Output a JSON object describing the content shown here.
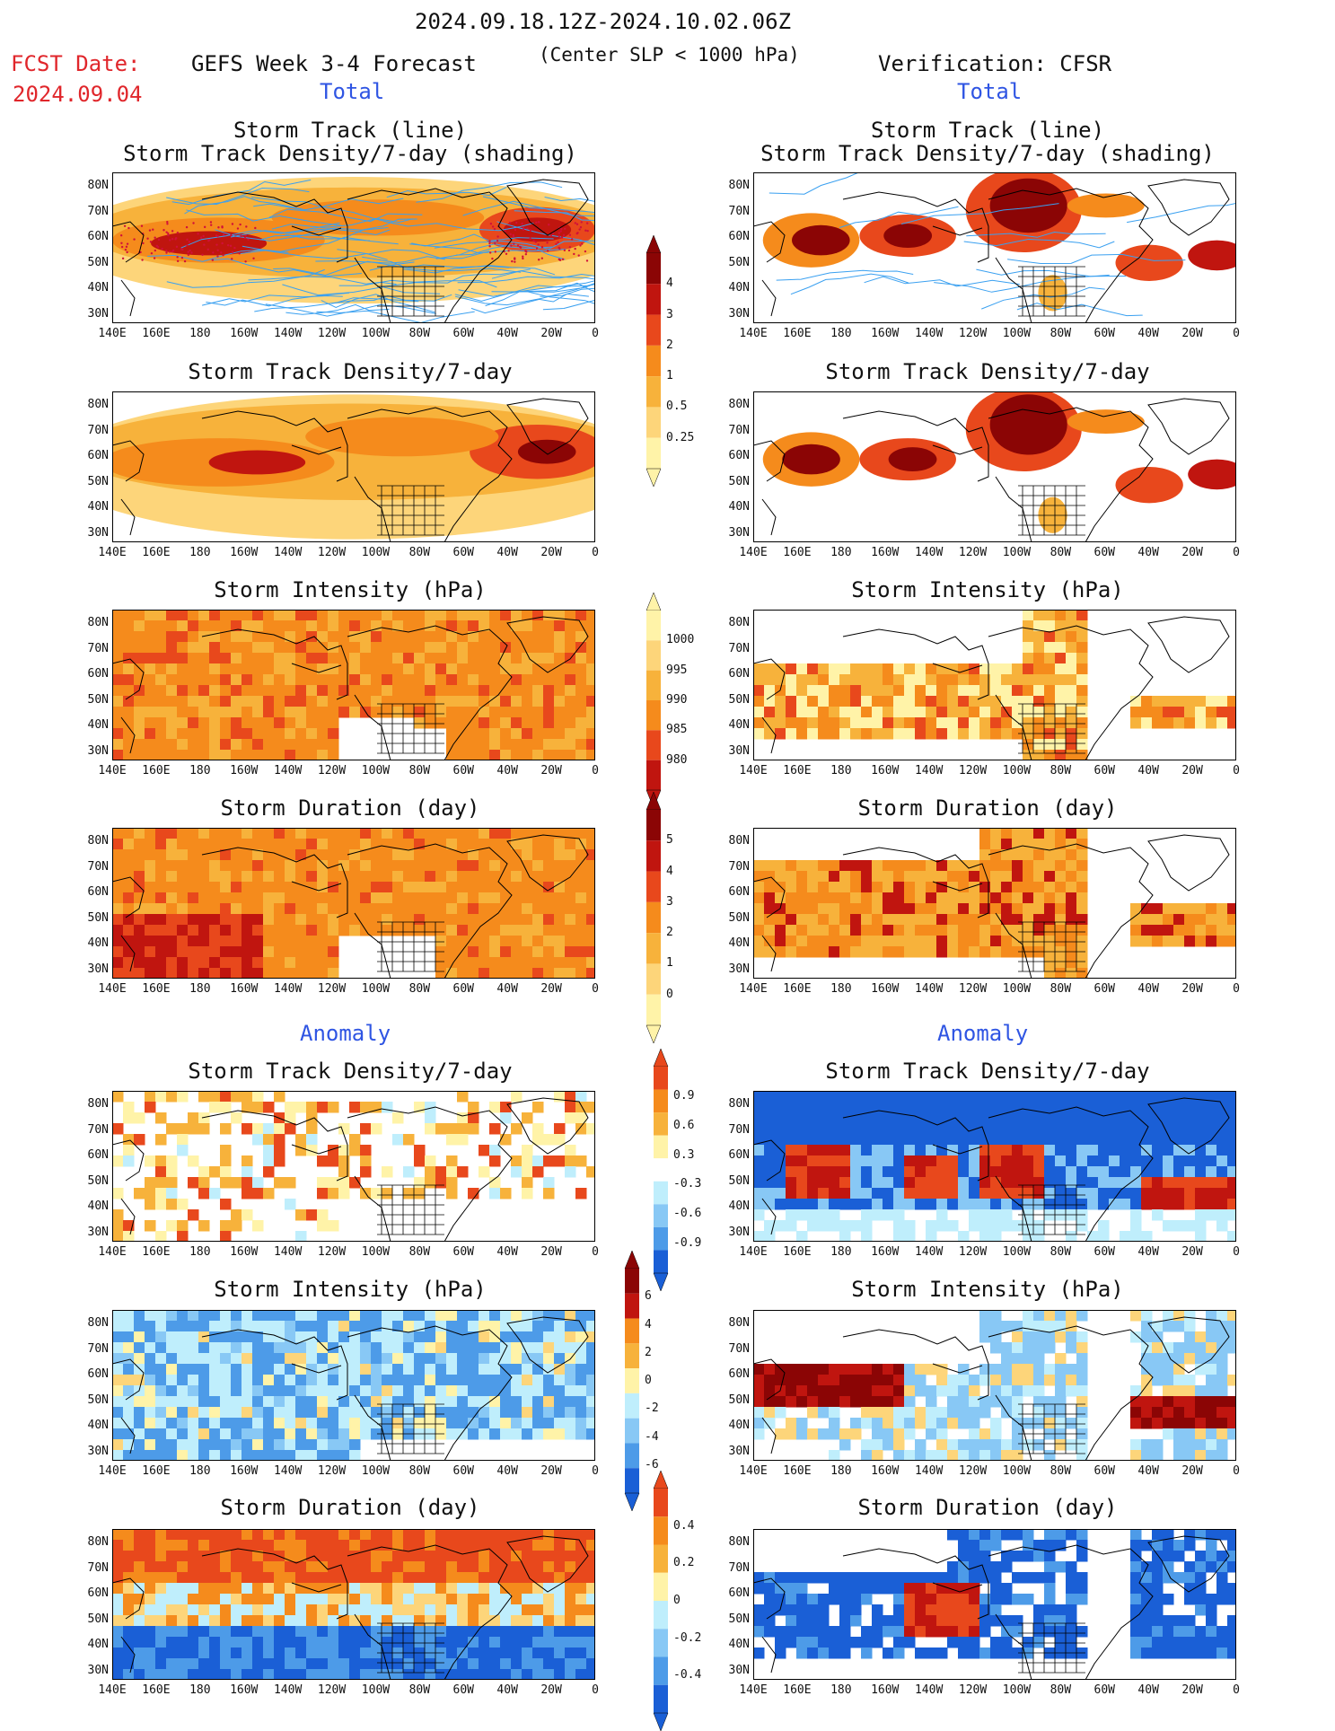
{
  "header": {
    "date_range": "2024.09.18.12Z-2024.10.02.06Z",
    "fcst_label": "FCST Date:",
    "fcst_date": "2024.09.04",
    "model_title": "GEFS Week 3-4 Forecast",
    "criterion": "(Center SLP < 1000 hPa)",
    "verification": "Verification: CFSR",
    "left_section": "Total",
    "right_section": "Total",
    "anomaly_left": "Anomaly",
    "anomaly_right": "Anomaly"
  },
  "panel_titles": {
    "track_line": "Storm Track (line)",
    "track_shading": "Storm Track Density/7-day (shading)",
    "density": "Storm Track Density/7-day",
    "intensity": "Storm Intensity (hPa)",
    "duration": "Storm Duration (day)"
  },
  "axes": {
    "lat_ticks": [
      "80N",
      "70N",
      "60N",
      "50N",
      "40N",
      "30N"
    ],
    "lon_ticks": [
      "140E",
      "160E",
      "180",
      "160W",
      "140W",
      "120W",
      "100W",
      "80W",
      "60W",
      "40W",
      "20W",
      "0"
    ]
  },
  "colorbars": {
    "density_total": [
      "4",
      "3",
      "2",
      "1",
      "0.5",
      "0.25"
    ],
    "intensity_total": [
      "1000",
      "995",
      "990",
      "985",
      "980"
    ],
    "duration_total": [
      "5",
      "4",
      "3",
      "2",
      "1",
      "0"
    ],
    "density_anom": [
      "0.9",
      "0.6",
      "0.3",
      "-0.3",
      "-0.6",
      "-0.9"
    ],
    "intensity_anom": [
      "6",
      "4",
      "2",
      "0",
      "-2",
      "-4",
      "-6"
    ],
    "duration_anom": [
      "0.4",
      "0.2",
      "0",
      "-0.2",
      "-0.4"
    ]
  },
  "palette": {
    "warm": [
      "#fff3a8",
      "#fdd57a",
      "#f7b23b",
      "#f58b1c",
      "#e8481c",
      "#c0150f",
      "#8b0505"
    ],
    "cool": [
      "#ffffff",
      "#bfeefc",
      "#88c8f5",
      "#4d9be8",
      "#1a5fd6"
    ]
  }
}
